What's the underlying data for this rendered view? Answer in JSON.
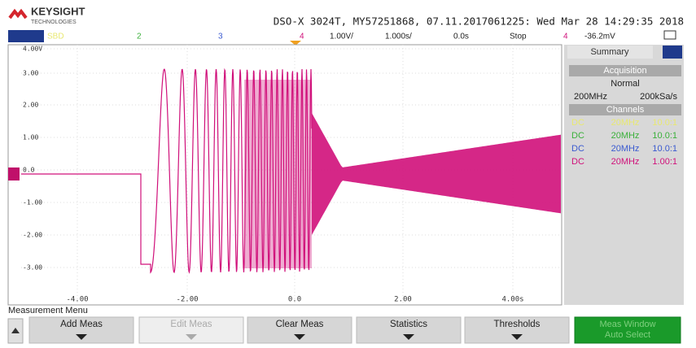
{
  "header": {
    "brand": "KEYSIGHT",
    "brand_sub": "TECHNOLOGIES",
    "info": "DSO-X 3024T, MY57251868, 07.11.2017061225: Wed Mar 28 14:29:35 2018"
  },
  "status_bar": {
    "sbd": "SBD",
    "ch2": "2",
    "ch3": "3",
    "ch4": "4",
    "scale": "1.00V/",
    "timebase": "1.000s/",
    "delay": "0.0s",
    "run_state": "Stop",
    "trigger_source": "4",
    "trigger_level": "-36.2mV"
  },
  "screen": {
    "y_labels": [
      "4.00V",
      "3.00",
      "2.00",
      "1.00",
      "0.0",
      "-1.00",
      "-2.00",
      "-3.00"
    ],
    "x_labels": [
      "-4.00",
      "-2.00",
      "0.0",
      "2.00",
      "4.00s"
    ]
  },
  "side_panel": {
    "tab": "Summary",
    "acquisition_title": "Acquisition",
    "mode": "Normal",
    "bandwidth": "200MHz",
    "sample_rate": "200kSa/s",
    "channels_title": "Channels",
    "channels": [
      [
        "DC",
        "20MHz",
        "10.0:1"
      ],
      [
        "DC",
        "20MHz",
        "10.0:1"
      ],
      [
        "DC",
        "20MHz",
        "10.0:1"
      ],
      [
        "DC",
        "20MHz",
        "1.00:1"
      ]
    ]
  },
  "menu": {
    "title": "Measurement Menu",
    "buttons": [
      "Add Meas",
      "Edit Meas",
      "Clear Meas",
      "Statistics",
      "Thresholds"
    ],
    "last_button": [
      "Meas Window",
      "Auto Select"
    ]
  }
}
